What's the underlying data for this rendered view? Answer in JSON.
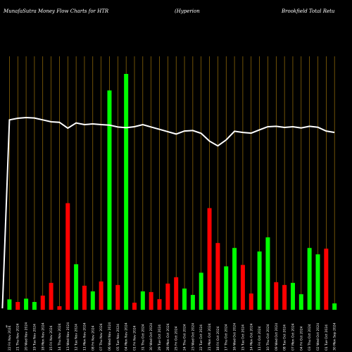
{
  "header": {
    "title_left": "MunafaSutra  Money Flow  Charts for HTR",
    "title_mid": "(Hyperion",
    "title_right": "Brookfield Total Retu"
  },
  "chart_data": {
    "type": "bar",
    "title": "MunafaSutra Money Flow Charts for HTR",
    "colors": {
      "up": "#00ff00",
      "down": "#ff0000",
      "line": "#ffffff",
      "grid": "#b8860b"
    },
    "ylim": [
      0,
      100
    ],
    "bars": [
      {
        "date": "22 Fri Nov 2024",
        "value": 4.4,
        "dir": "up"
      },
      {
        "date": "21 Thu Nov 2024",
        "value": 3.3,
        "dir": "down"
      },
      {
        "date": "20 Wed Nov 2024",
        "value": 4.7,
        "dir": "up"
      },
      {
        "date": "19 Tue Nov 2024",
        "value": 3.3,
        "dir": "up"
      },
      {
        "date": "18 Mon Nov 2024",
        "value": 6.0,
        "dir": "down"
      },
      {
        "date": "15 Fri Nov 2024",
        "value": 11.4,
        "dir": "down"
      },
      {
        "date": "14 Thu Nov 2024",
        "value": 1.5,
        "dir": "down"
      },
      {
        "date": "13 Wed Nov 2024",
        "value": 45.2,
        "dir": "down"
      },
      {
        "date": "12 Tue Nov 2024",
        "value": 19.3,
        "dir": "up"
      },
      {
        "date": "11 Mon Nov 2024",
        "value": 10.2,
        "dir": "down"
      },
      {
        "date": "08 Fri Nov 2024",
        "value": 7.8,
        "dir": "up"
      },
      {
        "date": "07 Thu Nov 2024",
        "value": 12.0,
        "dir": "down"
      },
      {
        "date": "06 Wed Nov 2024",
        "value": 93.0,
        "dir": "up"
      },
      {
        "date": "05 Tue Nov 2024",
        "value": 10.5,
        "dir": "down"
      },
      {
        "date": "04 Mon Nov 2024",
        "value": 100.0,
        "dir": "up"
      },
      {
        "date": "01 Fri Nov 2024",
        "value": 3.0,
        "dir": "down"
      },
      {
        "date": "31 Thu Oct 2024",
        "value": 7.8,
        "dir": "up"
      },
      {
        "date": "30 Wed Oct 2024",
        "value": 7.5,
        "dir": "down"
      },
      {
        "date": "29 Tue Oct 2024",
        "value": 4.5,
        "dir": "down"
      },
      {
        "date": "28 Mon Oct 2024",
        "value": 11.1,
        "dir": "down"
      },
      {
        "date": "25 Fri Oct 2024",
        "value": 13.8,
        "dir": "down"
      },
      {
        "date": "24 Thu Oct 2024",
        "value": 9.0,
        "dir": "up"
      },
      {
        "date": "23 Wed Oct 2024",
        "value": 6.3,
        "dir": "up"
      },
      {
        "date": "22 Tue Oct 2024",
        "value": 15.7,
        "dir": "up"
      },
      {
        "date": "21 Mon Oct 2024",
        "value": 43.1,
        "dir": "down"
      },
      {
        "date": "18 Fri Oct 2024",
        "value": 28.3,
        "dir": "down"
      },
      {
        "date": "17 Thu Oct 2024",
        "value": 18.4,
        "dir": "up"
      },
      {
        "date": "16 Wed Oct 2024",
        "value": 26.2,
        "dir": "up"
      },
      {
        "date": "15 Tue Oct 2024",
        "value": 19.0,
        "dir": "down"
      },
      {
        "date": "14 Mon Oct 2024",
        "value": 6.9,
        "dir": "down"
      },
      {
        "date": "11 Fri Oct 2024",
        "value": 24.7,
        "dir": "up"
      },
      {
        "date": "10 Thu Oct 2024",
        "value": 30.7,
        "dir": "up"
      },
      {
        "date": "09 Wed Oct 2024",
        "value": 11.7,
        "dir": "down"
      },
      {
        "date": "08 Tue Oct 2024",
        "value": 10.5,
        "dir": "down"
      },
      {
        "date": "07 Mon Oct 2024",
        "value": 11.4,
        "dir": "up"
      },
      {
        "date": "04 Fri Oct 2024",
        "value": 6.6,
        "dir": "up"
      },
      {
        "date": "03 Thu Oct 2024",
        "value": 26.2,
        "dir": "up"
      },
      {
        "date": "02 Wed Oct 2024",
        "value": 23.5,
        "dir": "up"
      },
      {
        "date": "01 Tue Oct 2024",
        "value": 25.9,
        "dir": "down"
      },
      {
        "date": "30 Mon Sep 2024",
        "value": 2.7,
        "dir": "up"
      }
    ],
    "price_line": [
      80.5,
      81.2,
      81.5,
      81.3,
      80.5,
      79.7,
      79.5,
      77.0,
      79.2,
      78.5,
      78.8,
      78.5,
      78.3,
      77.5,
      77.2,
      77.6,
      78.5,
      77.5,
      76.5,
      75.5,
      74.5,
      75.8,
      76.0,
      74.8,
      71.5,
      69.5,
      72.0,
      75.7,
      75.2,
      74.9,
      76.3,
      77.6,
      77.8,
      77.3,
      77.6,
      77.1,
      77.8,
      77.4,
      75.8,
      75.2
    ],
    "line_start": 0,
    "xlabel": "",
    "ylabel": ""
  }
}
